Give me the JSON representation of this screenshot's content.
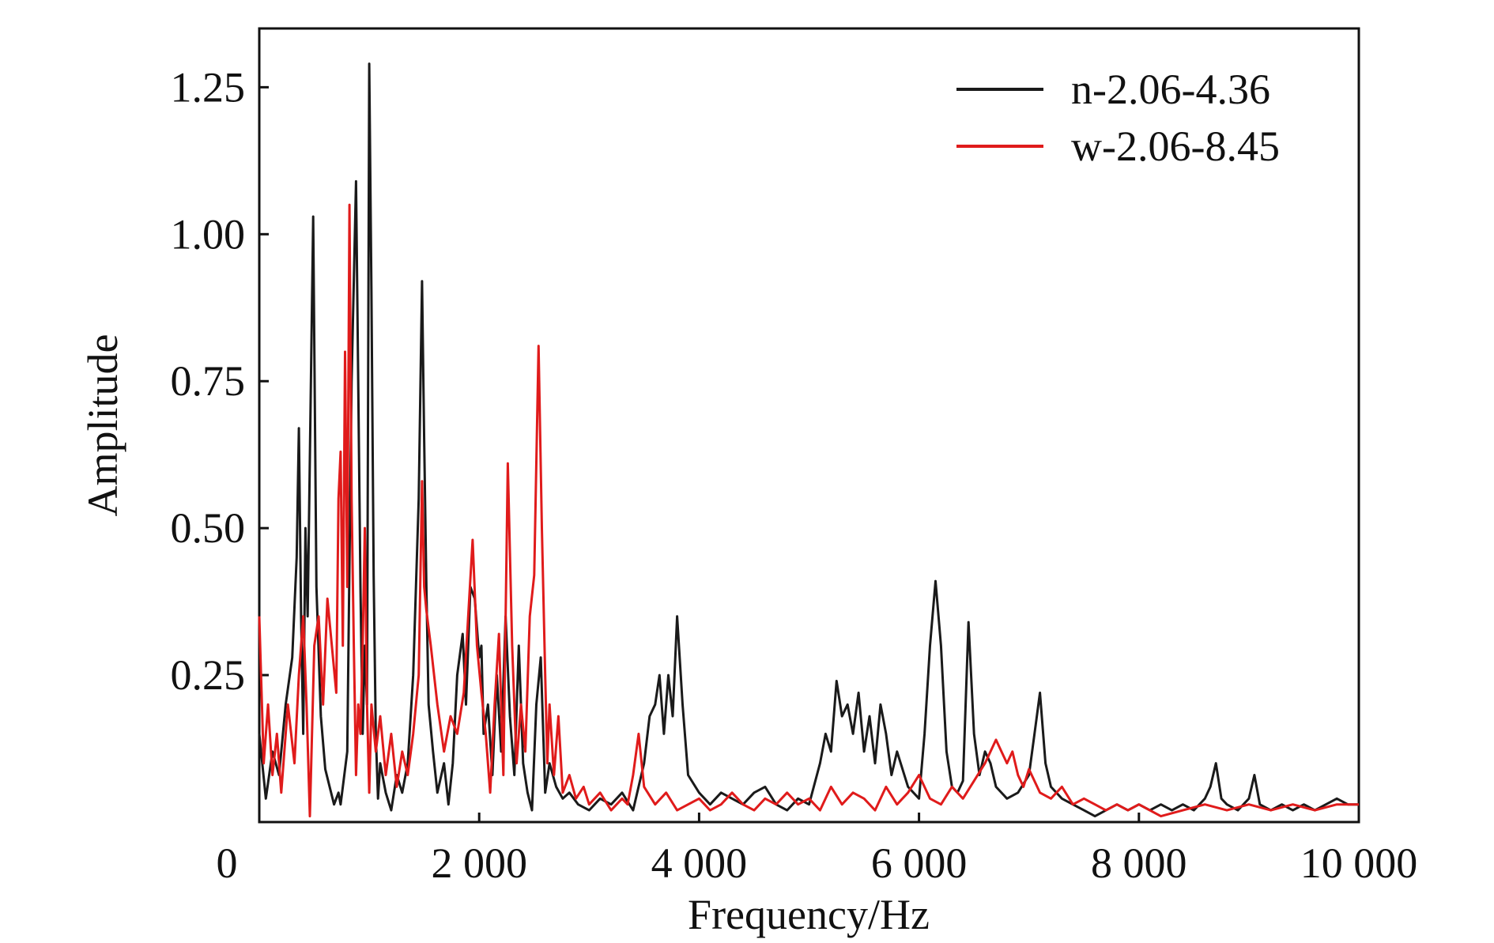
{
  "chart_data": {
    "type": "line",
    "title": "",
    "xlabel": "Frequency/Hz",
    "ylabel": "Amplitude",
    "xlim": [
      0,
      10000
    ],
    "ylim": [
      0,
      1.35
    ],
    "origin_label": "0",
    "x_ticks": [
      {
        "value": 2000,
        "label": "2 000"
      },
      {
        "value": 4000,
        "label": "4 000"
      },
      {
        "value": 6000,
        "label": "6 000"
      },
      {
        "value": 8000,
        "label": "8 000"
      },
      {
        "value": 10000,
        "label": "10 000"
      }
    ],
    "y_ticks": [
      {
        "value": 0.25,
        "label": "0.25"
      },
      {
        "value": 0.5,
        "label": "0.50"
      },
      {
        "value": 0.75,
        "label": "0.75"
      },
      {
        "value": 1.0,
        "label": "1.00"
      },
      {
        "value": 1.25,
        "label": "1.25"
      }
    ],
    "grid": false,
    "legend_position": "top-right",
    "series": [
      {
        "name": "n-2.06-4.36",
        "color": "#1a1a1a",
        "x": [
          0,
          60,
          120,
          180,
          240,
          300,
          340,
          360,
          380,
          400,
          420,
          440,
          460,
          490,
          520,
          560,
          600,
          640,
          680,
          700,
          720,
          740,
          760,
          800,
          840,
          880,
          920,
          940,
          960,
          980,
          1000,
          1020,
          1040,
          1060,
          1080,
          1100,
          1150,
          1200,
          1250,
          1300,
          1350,
          1400,
          1450,
          1480,
          1500,
          1520,
          1540,
          1580,
          1620,
          1680,
          1720,
          1760,
          1800,
          1850,
          1880,
          1920,
          1960,
          2000,
          2020,
          2040,
          2080,
          2120,
          2160,
          2200,
          2240,
          2280,
          2320,
          2360,
          2400,
          2440,
          2480,
          2520,
          2560,
          2600,
          2640,
          2700,
          2760,
          2820,
          2900,
          3000,
          3100,
          3200,
          3300,
          3400,
          3500,
          3550,
          3600,
          3640,
          3680,
          3720,
          3760,
          3800,
          3850,
          3900,
          4000,
          4100,
          4200,
          4300,
          4400,
          4500,
          4600,
          4700,
          4800,
          4900,
          5000,
          5100,
          5150,
          5200,
          5250,
          5300,
          5350,
          5400,
          5450,
          5500,
          5550,
          5600,
          5650,
          5700,
          5750,
          5800,
          5900,
          6000,
          6050,
          6100,
          6150,
          6200,
          6250,
          6300,
          6350,
          6400,
          6450,
          6500,
          6550,
          6600,
          6650,
          6700,
          6800,
          6900,
          7000,
          7050,
          7100,
          7150,
          7200,
          7300,
          7400,
          7500,
          7600,
          7700,
          7800,
          7900,
          8000,
          8100,
          8200,
          8300,
          8400,
          8500,
          8600,
          8650,
          8700,
          8750,
          8800,
          8900,
          9000,
          9050,
          9100,
          9200,
          9300,
          9400,
          9500,
          9600,
          9700,
          9800,
          9900,
          10000
        ],
        "y": [
          0.15,
          0.04,
          0.12,
          0.08,
          0.2,
          0.28,
          0.45,
          0.67,
          0.35,
          0.15,
          0.5,
          0.35,
          0.62,
          1.03,
          0.4,
          0.18,
          0.09,
          0.06,
          0.03,
          0.04,
          0.05,
          0.03,
          0.06,
          0.12,
          0.75,
          1.09,
          0.4,
          0.15,
          0.3,
          0.2,
          1.29,
          0.9,
          0.42,
          0.15,
          0.04,
          0.1,
          0.05,
          0.02,
          0.08,
          0.05,
          0.1,
          0.25,
          0.55,
          0.92,
          0.65,
          0.4,
          0.2,
          0.12,
          0.05,
          0.1,
          0.03,
          0.1,
          0.25,
          0.32,
          0.2,
          0.4,
          0.38,
          0.28,
          0.3,
          0.15,
          0.2,
          0.08,
          0.25,
          0.12,
          0.35,
          0.18,
          0.08,
          0.3,
          0.1,
          0.05,
          0.02,
          0.2,
          0.28,
          0.05,
          0.1,
          0.06,
          0.04,
          0.05,
          0.03,
          0.02,
          0.04,
          0.03,
          0.05,
          0.02,
          0.1,
          0.18,
          0.2,
          0.25,
          0.15,
          0.25,
          0.18,
          0.35,
          0.2,
          0.08,
          0.05,
          0.03,
          0.05,
          0.04,
          0.03,
          0.05,
          0.06,
          0.03,
          0.02,
          0.04,
          0.03,
          0.1,
          0.15,
          0.12,
          0.24,
          0.18,
          0.2,
          0.15,
          0.22,
          0.12,
          0.18,
          0.1,
          0.2,
          0.15,
          0.08,
          0.12,
          0.06,
          0.04,
          0.15,
          0.3,
          0.41,
          0.3,
          0.12,
          0.06,
          0.05,
          0.07,
          0.34,
          0.15,
          0.08,
          0.12,
          0.1,
          0.06,
          0.04,
          0.05,
          0.08,
          0.15,
          0.22,
          0.1,
          0.06,
          0.04,
          0.03,
          0.02,
          0.01,
          0.02,
          0.03,
          0.02,
          0.03,
          0.02,
          0.03,
          0.02,
          0.03,
          0.02,
          0.04,
          0.06,
          0.1,
          0.04,
          0.03,
          0.02,
          0.04,
          0.08,
          0.03,
          0.02,
          0.03,
          0.02,
          0.03,
          0.02,
          0.03,
          0.04,
          0.03,
          0.03
        ]
      },
      {
        "name": "w-2.06-8.45",
        "color": "#e01b1b",
        "x": [
          0,
          40,
          80,
          120,
          160,
          200,
          260,
          320,
          360,
          400,
          430,
          460,
          500,
          540,
          580,
          620,
          660,
          700,
          720,
          740,
          760,
          780,
          800,
          820,
          840,
          860,
          880,
          900,
          920,
          940,
          960,
          980,
          1000,
          1020,
          1060,
          1100,
          1150,
          1200,
          1250,
          1300,
          1350,
          1400,
          1450,
          1480,
          1500,
          1520,
          1560,
          1620,
          1680,
          1740,
          1800,
          1860,
          1900,
          1940,
          1980,
          2020,
          2060,
          2100,
          2140,
          2180,
          2220,
          2260,
          2300,
          2340,
          2380,
          2420,
          2460,
          2500,
          2540,
          2570,
          2600,
          2620,
          2640,
          2680,
          2720,
          2760,
          2820,
          2880,
          2950,
          3000,
          3100,
          3200,
          3300,
          3350,
          3400,
          3450,
          3500,
          3600,
          3700,
          3800,
          3900,
          4000,
          4100,
          4200,
          4300,
          4400,
          4500,
          4600,
          4700,
          4800,
          4900,
          5000,
          5100,
          5200,
          5300,
          5400,
          5500,
          5600,
          5700,
          5800,
          5900,
          6000,
          6100,
          6200,
          6300,
          6400,
          6500,
          6600,
          6700,
          6750,
          6800,
          6850,
          6900,
          6950,
          7000,
          7100,
          7200,
          7300,
          7400,
          7500,
          7600,
          7700,
          7800,
          7900,
          8000,
          8200,
          8400,
          8600,
          8800,
          9000,
          9200,
          9400,
          9600,
          9800,
          10000
        ],
        "y": [
          0.35,
          0.1,
          0.2,
          0.08,
          0.15,
          0.05,
          0.2,
          0.1,
          0.25,
          0.35,
          0.2,
          0.01,
          0.3,
          0.35,
          0.2,
          0.38,
          0.3,
          0.22,
          0.55,
          0.63,
          0.3,
          0.8,
          0.4,
          1.05,
          0.55,
          0.3,
          0.08,
          0.2,
          0.15,
          0.3,
          0.5,
          0.2,
          0.05,
          0.2,
          0.12,
          0.18,
          0.08,
          0.15,
          0.06,
          0.12,
          0.08,
          0.15,
          0.25,
          0.58,
          0.4,
          0.36,
          0.3,
          0.2,
          0.12,
          0.18,
          0.15,
          0.22,
          0.35,
          0.48,
          0.3,
          0.22,
          0.15,
          0.05,
          0.2,
          0.32,
          0.08,
          0.61,
          0.3,
          0.1,
          0.2,
          0.12,
          0.35,
          0.42,
          0.81,
          0.5,
          0.25,
          0.1,
          0.2,
          0.08,
          0.18,
          0.05,
          0.08,
          0.04,
          0.06,
          0.03,
          0.05,
          0.02,
          0.04,
          0.03,
          0.08,
          0.15,
          0.06,
          0.03,
          0.05,
          0.02,
          0.03,
          0.04,
          0.02,
          0.03,
          0.05,
          0.03,
          0.02,
          0.04,
          0.03,
          0.05,
          0.03,
          0.04,
          0.02,
          0.06,
          0.03,
          0.05,
          0.04,
          0.02,
          0.06,
          0.03,
          0.05,
          0.08,
          0.04,
          0.03,
          0.06,
          0.04,
          0.07,
          0.1,
          0.14,
          0.12,
          0.1,
          0.12,
          0.08,
          0.06,
          0.09,
          0.05,
          0.04,
          0.06,
          0.03,
          0.04,
          0.03,
          0.02,
          0.03,
          0.02,
          0.03,
          0.01,
          0.02,
          0.03,
          0.02,
          0.03,
          0.02,
          0.03,
          0.02,
          0.03,
          0.03
        ]
      }
    ]
  }
}
